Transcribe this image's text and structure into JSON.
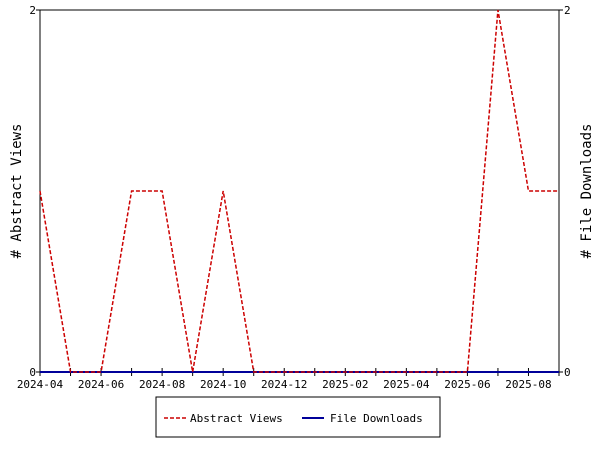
{
  "chart_data": {
    "type": "line",
    "x_axis_labels": [
      "2024-04",
      "2024-06",
      "2024-08",
      "2024-10",
      "2024-12",
      "2025-02",
      "2025-04",
      "2025-06",
      "2025-08"
    ],
    "x": [
      "2024-04",
      "2024-05",
      "2024-06",
      "2024-07",
      "2024-08",
      "2024-09",
      "2024-10",
      "2024-11",
      "2024-12",
      "2025-01",
      "2025-02",
      "2025-03",
      "2025-04",
      "2025-05",
      "2025-06",
      "2025-07",
      "2025-08",
      "2025-09"
    ],
    "series": [
      {
        "name": "Abstract Views",
        "axis": "left",
        "color": "#cc0000",
        "dash": "dashed",
        "values": [
          1,
          0,
          0,
          1,
          1,
          0,
          1,
          0,
          0,
          0,
          0,
          0,
          0,
          0,
          0,
          2,
          1,
          1
        ]
      },
      {
        "name": "File Downloads",
        "axis": "right",
        "color": "#000099",
        "dash": "solid",
        "values": [
          0,
          0,
          0,
          0,
          0,
          0,
          0,
          0,
          0,
          0,
          0,
          0,
          0,
          0,
          0,
          0,
          0,
          0
        ]
      }
    ],
    "ylabel_left": "# Abstract Views",
    "ylabel_right": "# File Downloads",
    "ylim_left": [
      0,
      2
    ],
    "ylim_right": [
      0,
      2
    ],
    "y_ticks_left": [
      "0",
      "2"
    ],
    "y_ticks_right": [
      "0",
      "2"
    ],
    "grid": false,
    "legend_placement": "bottom-center"
  }
}
